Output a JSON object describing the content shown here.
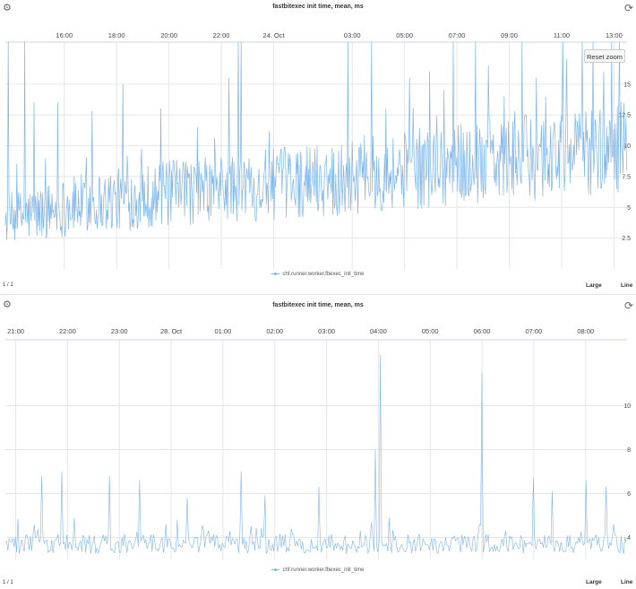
{
  "colors": {
    "series": "#7cb5ec",
    "grid": "#e6e6e6"
  },
  "icons": {
    "settings": "gear-icon",
    "refresh": "refresh-icon"
  },
  "panels": [
    {
      "title": "fastbitexec init time, mean, ms",
      "legend": "chf.runner.worker.fbexec_init_time",
      "page": "1 / 1",
      "size_label": "Large",
      "mode_label": "Line",
      "reset_zoom": "Reset zoom"
    },
    {
      "title": "fastbitexec init time, mean, ms",
      "legend": "chf.runner.worker.fbexec_init_time",
      "page": "1 / 1",
      "size_label": "Large",
      "mode_label": "Line"
    }
  ],
  "chart_data": [
    {
      "type": "line",
      "title": "fastbitexec init time, mean, ms",
      "x_tick_labels": [
        "16:00",
        "18:00",
        "20:00",
        "22:00",
        "24. Oct",
        "03:00",
        "05:00",
        "07:00",
        "09:00",
        "11:00",
        "13:00"
      ],
      "x_tick_hours": [
        16,
        18,
        20,
        22,
        24,
        27,
        29,
        31,
        33,
        35,
        37
      ],
      "xlim_hours": [
        13.75,
        37.5
      ],
      "y_tick_values": [
        2.5,
        5,
        7.5,
        10,
        12.5,
        15
      ],
      "y_tick_labels": [
        "2.5",
        "5",
        "7.5",
        "10",
        "12.5",
        "15"
      ],
      "ylim": [
        0,
        19.5
      ],
      "grid": true,
      "legend": "bottom-center",
      "series": [
        {
          "name": "chf.runner.worker.fbexec_init_time",
          "x_hours": [
            13.75,
            14.5,
            15,
            15.5,
            16,
            16.5,
            17,
            17.5,
            18,
            18.5,
            19,
            19.5,
            20,
            20.5,
            21,
            21.5,
            22,
            22.5,
            23,
            23.5,
            24,
            24.5,
            25,
            25.5,
            26,
            26.5,
            27,
            27.5,
            28,
            28.5,
            29,
            29.5,
            30,
            30.5,
            31,
            31.5,
            32,
            32.5,
            33,
            33.5,
            34,
            34.5,
            35,
            35.5,
            36,
            36.5,
            37,
            37.5
          ],
          "mean_values": [
            4.0,
            4.3,
            4.5,
            4.8,
            5.0,
            5.2,
            5.4,
            5.5,
            5.6,
            5.7,
            5.9,
            6.0,
            6.1,
            6.2,
            6.3,
            6.4,
            6.5,
            6.6,
            6.7,
            6.8,
            6.9,
            7.0,
            7.1,
            7.2,
            7.3,
            7.4,
            7.5,
            7.6,
            7.7,
            7.9,
            8.0,
            8.1,
            8.3,
            8.4,
            8.5,
            8.6,
            8.7,
            8.8,
            8.9,
            9.0,
            9.1,
            9.2,
            9.3,
            9.5,
            9.7,
            9.8,
            9.9,
            10.0
          ],
          "spikes": [
            [
              13.85,
              20
            ],
            [
              14.5,
              20
            ],
            [
              14.85,
              13.5
            ],
            [
              15.75,
              13.5
            ],
            [
              17.05,
              12.8
            ],
            [
              18.25,
              15.0
            ],
            [
              19.7,
              13.0
            ],
            [
              22.3,
              15.5
            ],
            [
              22.65,
              20
            ],
            [
              22.75,
              20
            ],
            [
              26.85,
              20
            ],
            [
              27.75,
              20
            ],
            [
              28.3,
              13.0
            ],
            [
              29.2,
              15.5
            ],
            [
              29.95,
              16.0
            ],
            [
              30.5,
              14.5
            ],
            [
              30.85,
              20
            ],
            [
              31.7,
              19.0
            ],
            [
              32.2,
              16.5
            ],
            [
              32.8,
              14.0
            ],
            [
              33.5,
              20
            ],
            [
              34.05,
              15.5
            ],
            [
              34.4,
              14.0
            ],
            [
              35.05,
              20
            ],
            [
              35.2,
              17.0
            ],
            [
              35.8,
              20
            ],
            [
              36.2,
              20
            ],
            [
              36.6,
              16.0
            ],
            [
              36.9,
              20
            ],
            [
              37.2,
              19.0
            ]
          ]
        }
      ]
    },
    {
      "type": "line",
      "title": "fastbitexec init time, mean, ms",
      "x_tick_labels": [
        "21:00",
        "22:00",
        "23:00",
        "28. Oct",
        "01:00",
        "02:00",
        "03:00",
        "04:00",
        "05:00",
        "06:00",
        "07:00",
        "08:00"
      ],
      "x_tick_hours": [
        21,
        22,
        23,
        24,
        25,
        26,
        27,
        28,
        29,
        30,
        31,
        32
      ],
      "xlim_hours": [
        20.8,
        32.8
      ],
      "y_tick_values": [
        4,
        6,
        8,
        10
      ],
      "y_tick_labels": [
        "4",
        "6",
        "8",
        "10"
      ],
      "ylim": [
        3.0,
        13.0
      ],
      "grid": true,
      "legend": "bottom-center",
      "series": [
        {
          "name": "chf.runner.worker.fbexec_init_time",
          "baseline": 3.7,
          "spikes": [
            [
              21.5,
              6.8
            ],
            [
              21.9,
              7.0
            ],
            [
              22.8,
              6.8
            ],
            [
              23.4,
              6.6
            ],
            [
              24.3,
              5.8
            ],
            [
              25.35,
              7.0
            ],
            [
              25.8,
              5.9
            ],
            [
              26.85,
              6.3
            ],
            [
              27.95,
              8.0
            ],
            [
              28.05,
              12.3
            ],
            [
              30.0,
              11.5
            ],
            [
              31.0,
              6.7
            ],
            [
              31.35,
              6.1
            ],
            [
              32.0,
              6.6
            ],
            [
              32.4,
              6.3
            ],
            [
              32.55,
              4.6
            ]
          ]
        }
      ]
    }
  ]
}
